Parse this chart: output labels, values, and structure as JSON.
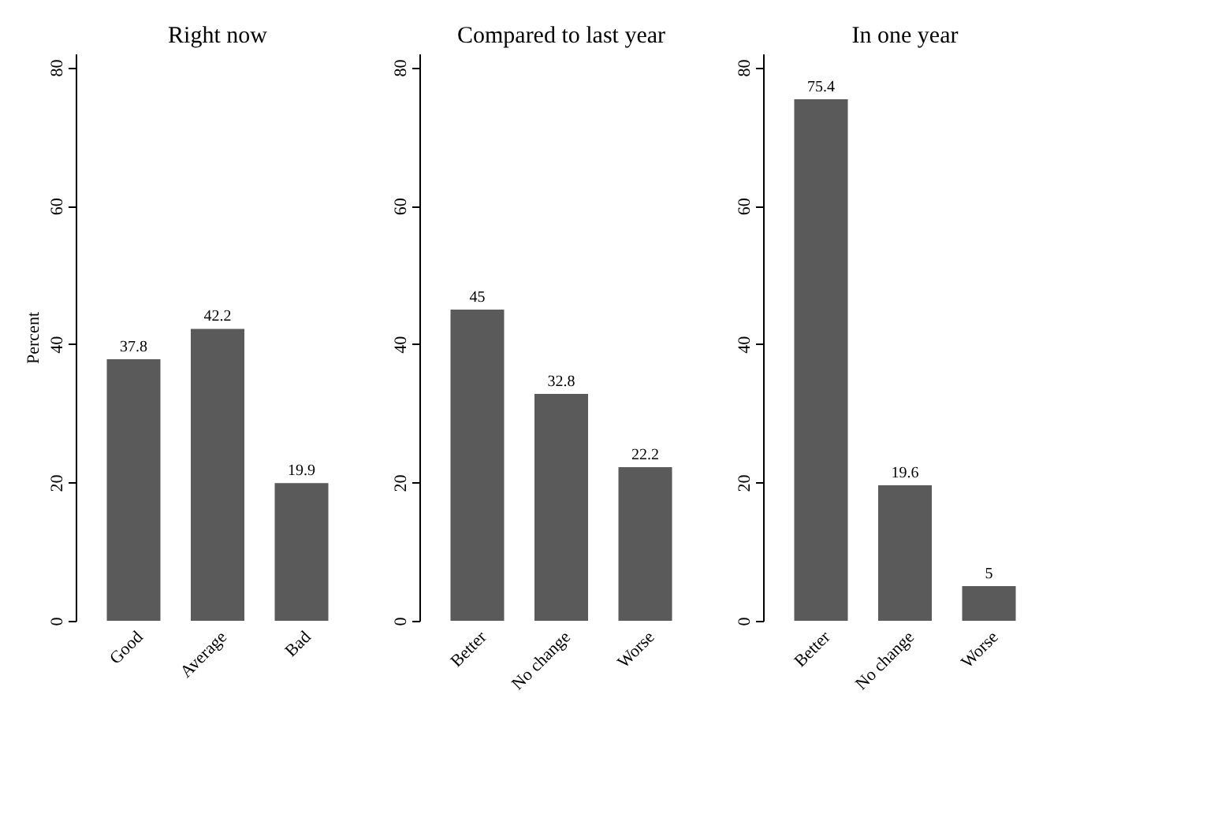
{
  "chart_data": [
    {
      "type": "bar",
      "title": "Right now",
      "ylabel": "Percent",
      "categories": [
        "Good",
        "Average",
        "Bad"
      ],
      "values": [
        37.8,
        42.2,
        19.9
      ],
      "color": "#5a5a5a",
      "ylim": [
        0,
        82
      ],
      "yticks": [
        0,
        20,
        40,
        60,
        80
      ],
      "data_labels": true,
      "grid": false
    },
    {
      "type": "bar",
      "title": "Compared to last year",
      "categories": [
        "Better",
        "No change",
        "Worse"
      ],
      "values": [
        45,
        32.8,
        22.2
      ],
      "color": "#5a5a5a",
      "ylim": [
        0,
        82
      ],
      "yticks": [
        0,
        20,
        40,
        60,
        80
      ],
      "data_labels": true,
      "grid": false
    },
    {
      "type": "bar",
      "title": "In one year",
      "categories": [
        "Better",
        "No change",
        "Worse"
      ],
      "values": [
        75.4,
        19.6,
        5
      ],
      "color": "#5a5a5a",
      "ylim": [
        0,
        82
      ],
      "yticks": [
        0,
        20,
        40,
        60,
        80
      ],
      "data_labels": true,
      "grid": false
    }
  ]
}
